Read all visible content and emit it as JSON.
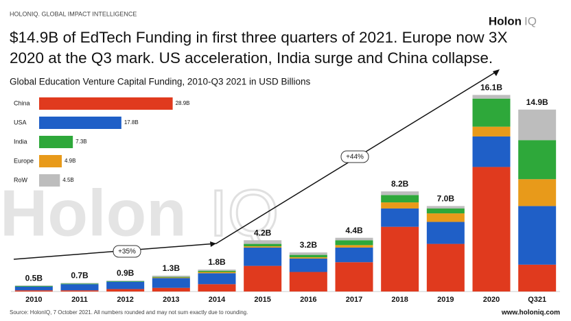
{
  "header": {
    "brand": "HOLONIQ. GLOBAL IMPACT INTELLIGENCE",
    "logo": "Holon",
    "logo_suffix": "IQ",
    "title_lines": [
      "$14.9B of EdTech Funding in first three quarters of 2021. Europe now 3X",
      "2020 at the Q3 mark. US acceleration, India surge and China collapse."
    ],
    "subtitle": "Global Education Venture Capital Funding, 2010-Q3 2021 in USD Billions"
  },
  "footer": {
    "source": "Source: HolonIQ, 7 October 2021. All numbers rounded and may not sum exactly due to rounding.",
    "website": "www.holoniq.com"
  },
  "chart_data": [
    {
      "type": "stacked_bar",
      "categories": [
        "2010",
        "2011",
        "2012",
        "2013",
        "2014",
        "2015",
        "2016",
        "2017",
        "2018",
        "2019",
        "2020",
        "Q321"
      ],
      "series": [
        {
          "name": "China",
          "color": "#e03a1e",
          "values": [
            0.1,
            0.1,
            0.2,
            0.3,
            0.6,
            2.1,
            1.6,
            2.4,
            5.3,
            3.9,
            10.2,
            2.2
          ]
        },
        {
          "name": "USA",
          "color": "#1f5fc7",
          "values": [
            0.3,
            0.5,
            0.6,
            0.8,
            0.9,
            1.5,
            1.1,
            1.2,
            1.5,
            1.8,
            2.5,
            4.8
          ]
        },
        {
          "name": "Europe",
          "color": "#e89a1a",
          "values": [
            0,
            0,
            0,
            0.05,
            0.1,
            0.1,
            0.1,
            0.2,
            0.5,
            0.7,
            0.8,
            2.2
          ]
        },
        {
          "name": "India",
          "color": "#2ea83a",
          "values": [
            0.05,
            0.05,
            0.05,
            0.05,
            0.1,
            0.2,
            0.2,
            0.4,
            0.6,
            0.4,
            2.3,
            3.2
          ]
        },
        {
          "name": "RoW",
          "color": "#bdbdbd",
          "values": [
            0.05,
            0.05,
            0.05,
            0.1,
            0.1,
            0.3,
            0.2,
            0.2,
            0.3,
            0.2,
            0.3,
            2.5
          ]
        }
      ],
      "totals": {
        "values": [
          0.5,
          0.7,
          0.9,
          1.3,
          1.8,
          4.2,
          3.2,
          4.4,
          8.2,
          7.0,
          16.1,
          14.9
        ],
        "value_labels": [
          "0.5B",
          "0.7B",
          "0.9B",
          "1.3B",
          "1.8B",
          "4.2B",
          "3.2B",
          "4.4B",
          "8.2B",
          "7.0B",
          "16.1B",
          "14.9B"
        ]
      },
      "annotations": [
        "+35%",
        "+44%"
      ],
      "ylim": [
        0,
        18
      ]
    },
    {
      "type": "hbar",
      "categories": [
        "China",
        "USA",
        "India",
        "Europe",
        "RoW"
      ],
      "values": [
        28.9,
        17.8,
        7.3,
        4.9,
        4.5
      ],
      "value_labels": [
        "28.9B",
        "17.8B",
        "7.3B",
        "4.9B",
        "4.5B"
      ],
      "colors": [
        "#e03a1e",
        "#1f5fc7",
        "#2ea83a",
        "#e89a1a",
        "#bdbdbd"
      ],
      "xlim": [
        0,
        30
      ]
    }
  ]
}
